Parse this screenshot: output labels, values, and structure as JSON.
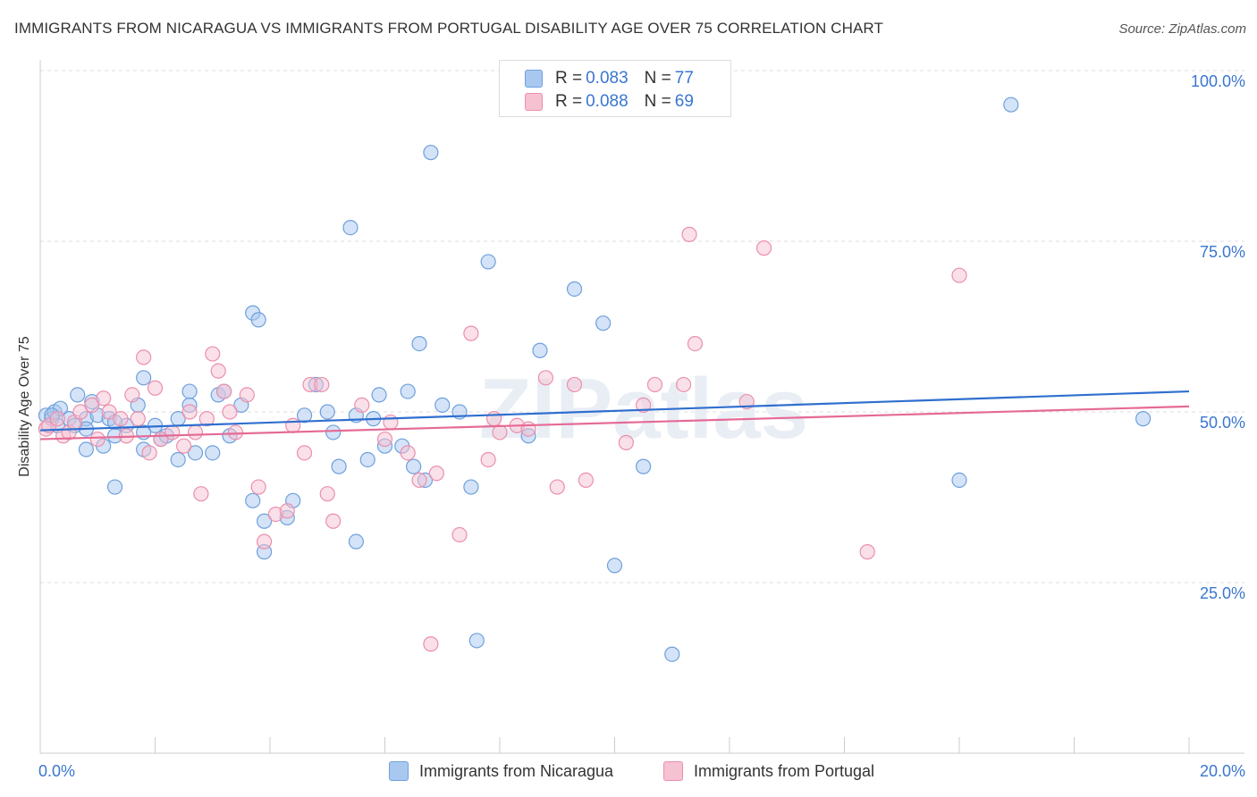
{
  "title": "IMMIGRANTS FROM NICARAGUA VS IMMIGRANTS FROM PORTUGAL DISABILITY AGE OVER 75 CORRELATION CHART",
  "source": "Source: ZipAtlas.com",
  "watermark": "ZIPatlas",
  "legend_top": {
    "rows": [
      {
        "r_label": "R = ",
        "r_value": "0.083",
        "n_label": "N = ",
        "n_value": "77"
      },
      {
        "r_label": "R = ",
        "r_value": "0.088",
        "n_label": "N = ",
        "n_value": "69"
      }
    ]
  },
  "colors": {
    "blue_fill": "#a9c8f0",
    "blue_stroke": "#6fa0dc",
    "blue_line": "#2f6fcf",
    "pink_fill": "#f6c1d1",
    "pink_stroke": "#eb8fae",
    "pink_line": "#e56a96",
    "tick_label": "#3a76d0"
  },
  "chart_data": {
    "type": "scatter",
    "xlabel": "",
    "ylabel": "Disability Age Over 75",
    "xlim": [
      0,
      20
    ],
    "ylim": [
      0,
      100
    ],
    "x_tick_labels": [
      "0.0%",
      "20.0%"
    ],
    "y_ticks": [
      25,
      50,
      75,
      100
    ],
    "y_tick_labels": [
      "25.0%",
      "50.0%",
      "75.0%",
      "100.0%"
    ],
    "grid": true,
    "series": [
      {
        "name": "Immigrants from Nicaragua",
        "color": "blue",
        "trend": [
          [
            0,
            47.3
          ],
          [
            20,
            53.0
          ]
        ],
        "points": [
          [
            0.1,
            49.5
          ],
          [
            0.2,
            49
          ],
          [
            0.25,
            50
          ],
          [
            0.35,
            50.5
          ],
          [
            0.5,
            49
          ],
          [
            0.6,
            48
          ],
          [
            0.65,
            52.5
          ],
          [
            0.8,
            49
          ],
          [
            0.9,
            51.5
          ],
          [
            1.0,
            49.5
          ],
          [
            0.8,
            47.5
          ],
          [
            1.1,
            45
          ],
          [
            1.3,
            46.5
          ],
          [
            1.5,
            48
          ],
          [
            1.7,
            51
          ],
          [
            2.0,
            48
          ],
          [
            2.1,
            46
          ],
          [
            2.2,
            46.5
          ],
          [
            2.4,
            49
          ],
          [
            2.6,
            51
          ],
          [
            1.8,
            55
          ],
          [
            2.6,
            53
          ],
          [
            3.1,
            52.5
          ],
          [
            3.2,
            53
          ],
          [
            3.5,
            51
          ],
          [
            1.8,
            44.5
          ],
          [
            1.8,
            47
          ],
          [
            2.4,
            43
          ],
          [
            2.7,
            44
          ],
          [
            3.0,
            44
          ],
          [
            3.3,
            46.5
          ],
          [
            0.8,
            44.5
          ],
          [
            1.3,
            39
          ],
          [
            3.7,
            64.5
          ],
          [
            3.8,
            63.5
          ],
          [
            3.7,
            37
          ],
          [
            3.9,
            34
          ],
          [
            4.3,
            34.5
          ],
          [
            4.4,
            37
          ],
          [
            3.9,
            29.5
          ],
          [
            4.6,
            49.5
          ],
          [
            4.8,
            54
          ],
          [
            5.0,
            50
          ],
          [
            5.1,
            47
          ],
          [
            5.2,
            42
          ],
          [
            5.5,
            49.5
          ],
          [
            5.7,
            43
          ],
          [
            5.8,
            49
          ],
          [
            5.9,
            52.5
          ],
          [
            6.0,
            45
          ],
          [
            6.3,
            45
          ],
          [
            6.4,
            53
          ],
          [
            6.5,
            42
          ],
          [
            6.6,
            60
          ],
          [
            6.7,
            40
          ],
          [
            6.8,
            88
          ],
          [
            7.0,
            51
          ],
          [
            7.3,
            50
          ],
          [
            7.5,
            39
          ],
          [
            7.8,
            72
          ],
          [
            7.6,
            16.5
          ],
          [
            8.5,
            46.5
          ],
          [
            8.7,
            59
          ],
          [
            9.3,
            68
          ],
          [
            9.8,
            63
          ],
          [
            10.0,
            27.5
          ],
          [
            10.5,
            42
          ],
          [
            11.0,
            14.5
          ],
          [
            5.4,
            77
          ],
          [
            5.5,
            31
          ],
          [
            0.3,
            48
          ],
          [
            0.2,
            49.5
          ],
          [
            1.2,
            49
          ],
          [
            1.3,
            48.5
          ],
          [
            16.0,
            40
          ],
          [
            16.9,
            95
          ],
          [
            19.2,
            49
          ]
        ]
      },
      {
        "name": "Immigrants from Portugal",
        "color": "pink",
        "trend": [
          [
            0,
            46.0
          ],
          [
            20,
            50.8
          ]
        ],
        "points": [
          [
            0.1,
            47.5
          ],
          [
            0.15,
            48
          ],
          [
            0.3,
            49
          ],
          [
            0.4,
            46.5
          ],
          [
            0.5,
            47
          ],
          [
            0.6,
            48.5
          ],
          [
            0.7,
            50
          ],
          [
            0.9,
            51
          ],
          [
            1.0,
            46
          ],
          [
            1.1,
            52
          ],
          [
            1.2,
            50
          ],
          [
            1.4,
            49
          ],
          [
            1.5,
            46.5
          ],
          [
            1.6,
            52.5
          ],
          [
            1.7,
            49
          ],
          [
            1.9,
            44
          ],
          [
            2.0,
            53.5
          ],
          [
            2.1,
            46
          ],
          [
            2.3,
            47
          ],
          [
            2.5,
            45
          ],
          [
            2.6,
            50
          ],
          [
            2.7,
            47
          ],
          [
            2.9,
            49
          ],
          [
            3.1,
            56
          ],
          [
            3.2,
            53
          ],
          [
            3.3,
            50
          ],
          [
            3.4,
            47
          ],
          [
            3.6,
            52.5
          ],
          [
            1.8,
            58
          ],
          [
            3.0,
            58.5
          ],
          [
            3.8,
            39
          ],
          [
            3.9,
            31
          ],
          [
            2.8,
            38
          ],
          [
            4.1,
            35
          ],
          [
            4.3,
            35.5
          ],
          [
            4.6,
            44
          ],
          [
            4.7,
            54
          ],
          [
            4.9,
            54
          ],
          [
            5.0,
            38
          ],
          [
            5.1,
            34
          ],
          [
            4.4,
            48
          ],
          [
            5.6,
            51
          ],
          [
            6.0,
            46
          ],
          [
            6.1,
            48.5
          ],
          [
            6.4,
            44
          ],
          [
            6.6,
            40
          ],
          [
            6.8,
            16
          ],
          [
            6.9,
            41
          ],
          [
            7.3,
            32
          ],
          [
            7.5,
            61.5
          ],
          [
            7.8,
            43
          ],
          [
            7.9,
            49
          ],
          [
            8.0,
            47
          ],
          [
            8.3,
            48
          ],
          [
            8.5,
            47.5
          ],
          [
            8.8,
            55
          ],
          [
            9.0,
            39
          ],
          [
            9.3,
            54
          ],
          [
            9.5,
            40
          ],
          [
            10.2,
            45.5
          ],
          [
            10.5,
            51
          ],
          [
            10.7,
            54
          ],
          [
            11.2,
            54
          ],
          [
            11.3,
            76
          ],
          [
            11.4,
            60
          ],
          [
            12.3,
            51.5
          ],
          [
            12.6,
            74
          ],
          [
            14.4,
            29.5
          ],
          [
            16.0,
            70
          ]
        ]
      }
    ]
  },
  "bottom_legend": [
    {
      "label": "Immigrants from Nicaragua"
    },
    {
      "label": "Immigrants from Portugal"
    }
  ]
}
